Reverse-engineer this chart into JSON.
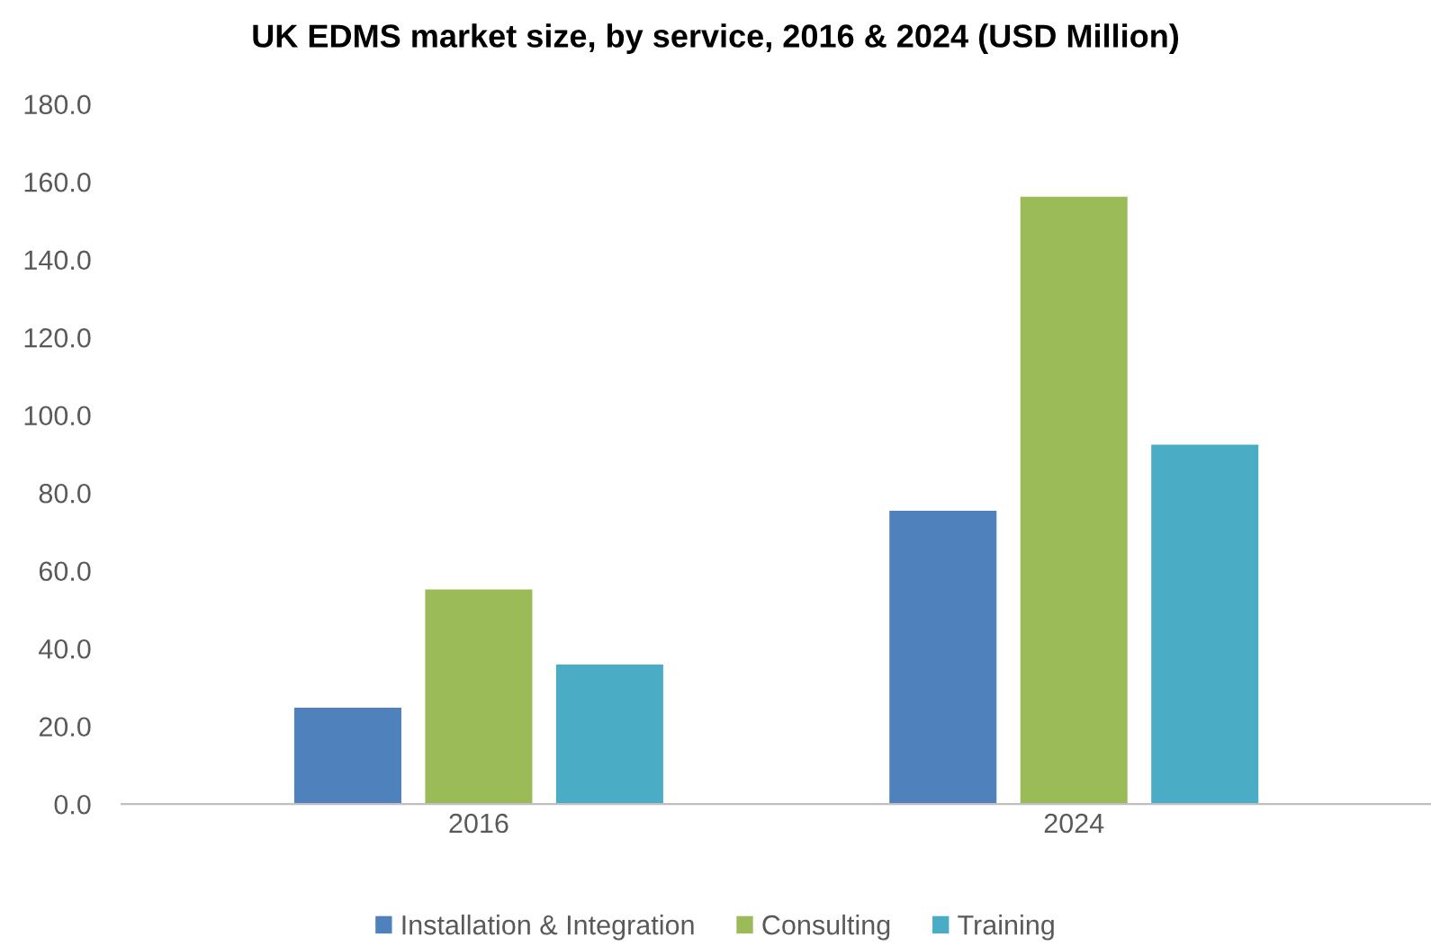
{
  "chart_data": {
    "type": "bar",
    "title": "UK EDMS market size, by service, 2016 & 2024 (USD Million)",
    "categories": [
      "2016",
      "2024"
    ],
    "series": [
      {
        "name": "Installation & Integration",
        "color": "#4f81bd",
        "values": [
          24.8,
          75.4
        ]
      },
      {
        "name": "Consulting",
        "color": "#9bbb59",
        "values": [
          55.2,
          156.2
        ]
      },
      {
        "name": "Training",
        "color": "#4bacc6",
        "values": [
          35.9,
          92.4
        ]
      }
    ],
    "ylim": [
      0,
      180
    ],
    "yticks": [
      {
        "value": 0,
        "label": "0.0"
      },
      {
        "value": 20,
        "label": "20.0"
      },
      {
        "value": 40,
        "label": "40.0"
      },
      {
        "value": 60,
        "label": "60.0"
      },
      {
        "value": 80,
        "label": "80.0"
      },
      {
        "value": 100,
        "label": "100.0"
      },
      {
        "value": 120,
        "label": "120.0"
      },
      {
        "value": 140,
        "label": "140.0"
      },
      {
        "value": 160,
        "label": "160.0"
      },
      {
        "value": 180,
        "label": "180.0"
      }
    ],
    "grid": false,
    "legend": "bottom"
  }
}
